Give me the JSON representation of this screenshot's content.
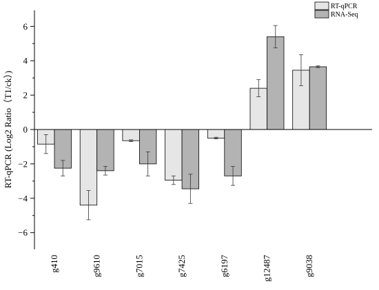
{
  "chart_data": {
    "type": "bar",
    "ylabel": "RT-qPCR (Log2 Ratio（T1/ck）)",
    "xlabel": "",
    "ylim": [
      -7,
      7.5
    ],
    "yticks": [
      6,
      4,
      2,
      0,
      -2,
      -4,
      -6
    ],
    "ytick_labels": [
      "6",
      "4",
      "2",
      "0",
      "−2",
      "−4",
      "−6"
    ],
    "categories": [
      "g410",
      "g9610",
      "g7015",
      "g7425",
      "g6197",
      "g12487",
      "g9038"
    ],
    "series": [
      {
        "name": "RT-qPCR",
        "color": "#e6e6e6",
        "values": [
          -0.85,
          -4.4,
          -0.65,
          -2.95,
          -0.5,
          2.4,
          3.45
        ],
        "errors": [
          0.55,
          0.85,
          0.05,
          0.25,
          0.05,
          0.5,
          0.9
        ]
      },
      {
        "name": "RNA-Seq",
        "color": "#b3b3b3",
        "values": [
          -2.25,
          -2.4,
          -2.0,
          -3.45,
          -2.7,
          5.4,
          3.65
        ],
        "errors": [
          0.45,
          0.25,
          0.7,
          0.85,
          0.55,
          0.65,
          0.05
        ]
      }
    ],
    "grid": false,
    "legend_position": "top-right"
  }
}
